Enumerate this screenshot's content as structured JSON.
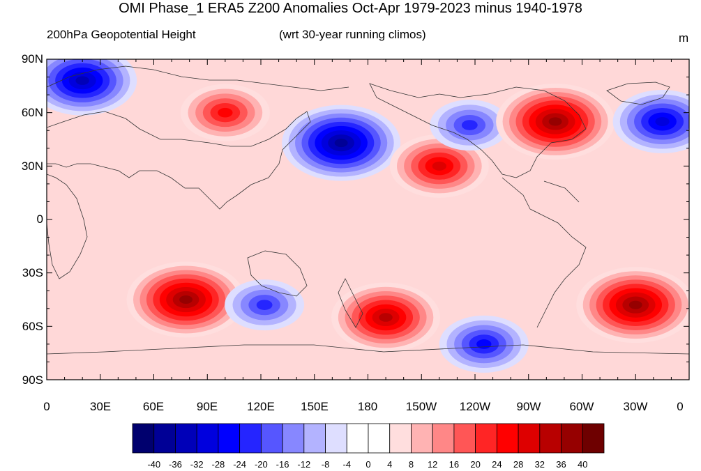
{
  "title": "OMI Phase_1 ERA5 Z200 Anomalies Oct-Apr 1979-2023 minus 1940-1978",
  "subtitle_left": "200hPa Geopotential Height",
  "subtitle_center": "(wrt 30-year running climos)",
  "units": "m",
  "y_tick_labels": [
    "90N",
    "60N",
    "30N",
    "0",
    "30S",
    "60S",
    "90S"
  ],
  "x_tick_labels": [
    "0",
    "30E",
    "60E",
    "90E",
    "120E",
    "150E",
    "180",
    "150W",
    "120W",
    "90W",
    "60W",
    "30W",
    "0"
  ],
  "colorbar": {
    "labels": [
      "-40",
      "-36",
      "-32",
      "-28",
      "-24",
      "-20",
      "-16",
      "-12",
      "-8",
      "-4",
      "0",
      "4",
      "8",
      "12",
      "16",
      "20",
      "24",
      "28",
      "32",
      "36",
      "40"
    ],
    "colors": [
      "#00006e",
      "#000096",
      "#0000b8",
      "#0000de",
      "#0000ff",
      "#2525ff",
      "#5656ff",
      "#8787ff",
      "#b3b3ff",
      "#dedeff",
      "#ffffff",
      "#ffffff",
      "#ffdede",
      "#ffb3b3",
      "#ff8787",
      "#ff5656",
      "#ff2525",
      "#ff0000",
      "#de0000",
      "#b80000",
      "#960000",
      "#6e0000"
    ]
  },
  "map_anomaly_centers": [
    {
      "lon": 20,
      "lat": 78,
      "value": -32
    },
    {
      "lon": 100,
      "lat": 60,
      "value": 24
    },
    {
      "lon": 165,
      "lat": 43,
      "value": -36
    },
    {
      "lon": 220,
      "lat": 30,
      "value": 28
    },
    {
      "lon": 237,
      "lat": 53,
      "value": -20
    },
    {
      "lon": 285,
      "lat": 55,
      "value": 36
    },
    {
      "lon": 345,
      "lat": 55,
      "value": -28
    },
    {
      "lon": 78,
      "lat": -45,
      "value": 36
    },
    {
      "lon": 122,
      "lat": -48,
      "value": -20
    },
    {
      "lon": 190,
      "lat": -55,
      "value": 32
    },
    {
      "lon": 245,
      "lat": -70,
      "value": -24
    },
    {
      "lon": 330,
      "lat": -48,
      "value": 36
    }
  ]
}
